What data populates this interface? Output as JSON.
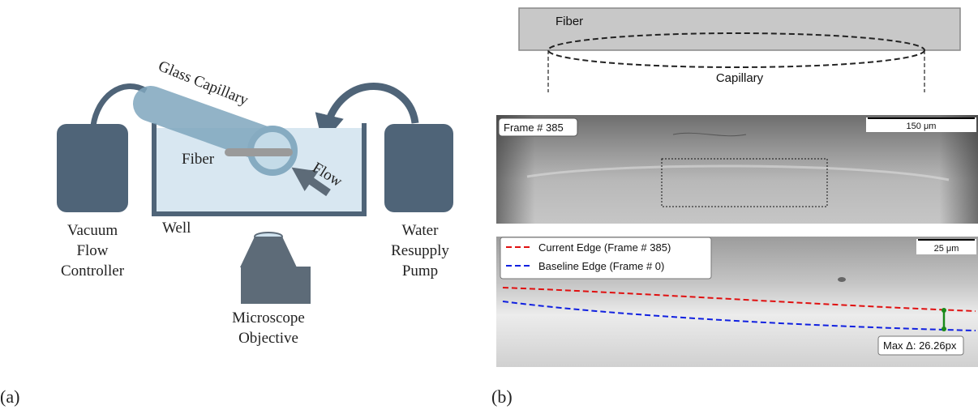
{
  "panel_a": {
    "label": "(a)",
    "capillary_label": "Glass Capillary",
    "fiber_label": "Fiber",
    "flow_label": "Flow",
    "well_label": "Well",
    "vacuum_label": [
      "Vacuum",
      "Flow",
      "Controller"
    ],
    "pump_label": [
      "Water",
      "Resupply",
      "Pump"
    ],
    "objective_label": [
      "Microscope",
      "Objective"
    ]
  },
  "panel_b": {
    "label": "(b)",
    "schematic": {
      "fiber_label": "Fiber",
      "capillary_label": "Capillary"
    },
    "frame_image": {
      "frame_label": "Frame # 385",
      "scale_label": "150 μm"
    },
    "edge_image": {
      "scale_label": "25 μm",
      "legend": [
        "Current Edge (Frame # 385)",
        "Baseline Edge (Frame # 0)"
      ],
      "max_delta": "Max Δ: 26.26px"
    }
  }
}
